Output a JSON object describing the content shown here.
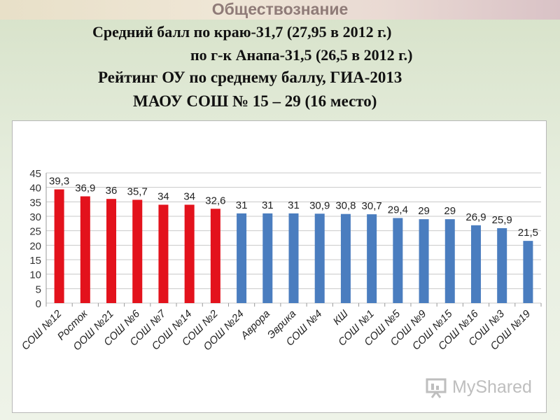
{
  "header": {
    "subject": "Обществознание",
    "line1": "Средний балл по краю-31,7 (27,95 в 2012 г.)",
    "line2": "по г-к Анапа-31,5 (26,5 в 2012 г.)",
    "line3": "Рейтинг ОУ по среднему баллу, ГИА-2013",
    "line4": "МАОУ СОШ № 15 – 29 (16 место)"
  },
  "watermark": {
    "text": "MyShared"
  },
  "colors": {
    "highlight": "#e3121c",
    "normal": "#4a7dbf",
    "grid": "#c8c8c8"
  },
  "chart_data": {
    "type": "bar",
    "title": "",
    "xlabel": "",
    "ylabel": "",
    "ylim": [
      0,
      45
    ],
    "yticks": [
      0,
      5,
      10,
      15,
      20,
      25,
      30,
      35,
      40,
      45
    ],
    "grid": true,
    "categories": [
      "СОШ №12",
      "Росток",
      "ООШ №21",
      "СОШ №6",
      "СОШ №7",
      "СОШ №14",
      "СОШ №2",
      "ООШ №24",
      "Аврора",
      "Эврика",
      "СОШ №4",
      "КШ",
      "СОШ №1",
      "СОШ №5",
      "СОШ №9",
      "СОШ №15",
      "СОШ №16",
      "СОШ №3",
      "СОШ №19"
    ],
    "values": [
      39.3,
      36.9,
      36,
      35.7,
      34,
      34,
      32.6,
      31,
      31,
      31,
      30.9,
      30.8,
      30.7,
      29.4,
      29,
      29,
      26.9,
      25.9,
      21.5
    ],
    "value_labels": [
      "39,3",
      "36,9",
      "36",
      "35,7",
      "34",
      "34",
      "32,6",
      "31",
      "31",
      "31",
      "30,9",
      "30,8",
      "30,7",
      "29,4",
      "29",
      "29",
      "26,9",
      "25,9",
      "21,5"
    ],
    "highlighted": [
      true,
      true,
      true,
      true,
      true,
      true,
      true,
      false,
      false,
      false,
      false,
      false,
      false,
      false,
      false,
      false,
      false,
      false,
      false
    ]
  }
}
